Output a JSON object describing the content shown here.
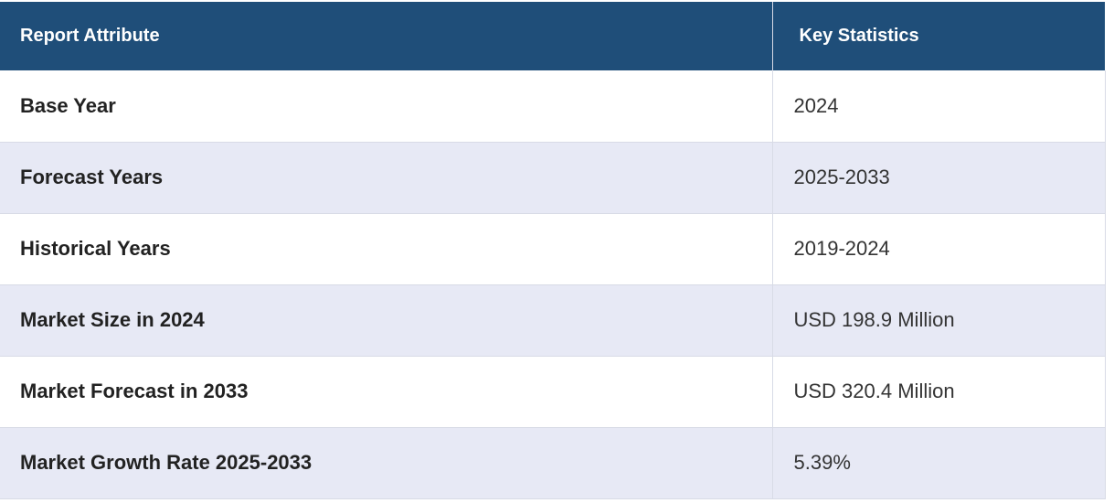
{
  "header": {
    "attribute_label": "Report Attribute",
    "statistics_label": "Key Statistics"
  },
  "rows": [
    {
      "attribute": "Base Year",
      "value": "2024"
    },
    {
      "attribute": "Forecast Years",
      "value": "2025-2033"
    },
    {
      "attribute": "Historical Years",
      "value": "2019-2024"
    },
    {
      "attribute": "Market Size in 2024",
      "value": "USD 198.9 Million"
    },
    {
      "attribute": "Market Forecast in 2033",
      "value": "USD 320.4 Million"
    },
    {
      "attribute": "Market Growth Rate 2025-2033",
      "value": "5.39%"
    }
  ],
  "colors": {
    "header_bg": "#1f4e79",
    "header_text": "#ffffff",
    "stripe_bg": "#e7e9f5",
    "border": "#d8dbe6"
  }
}
